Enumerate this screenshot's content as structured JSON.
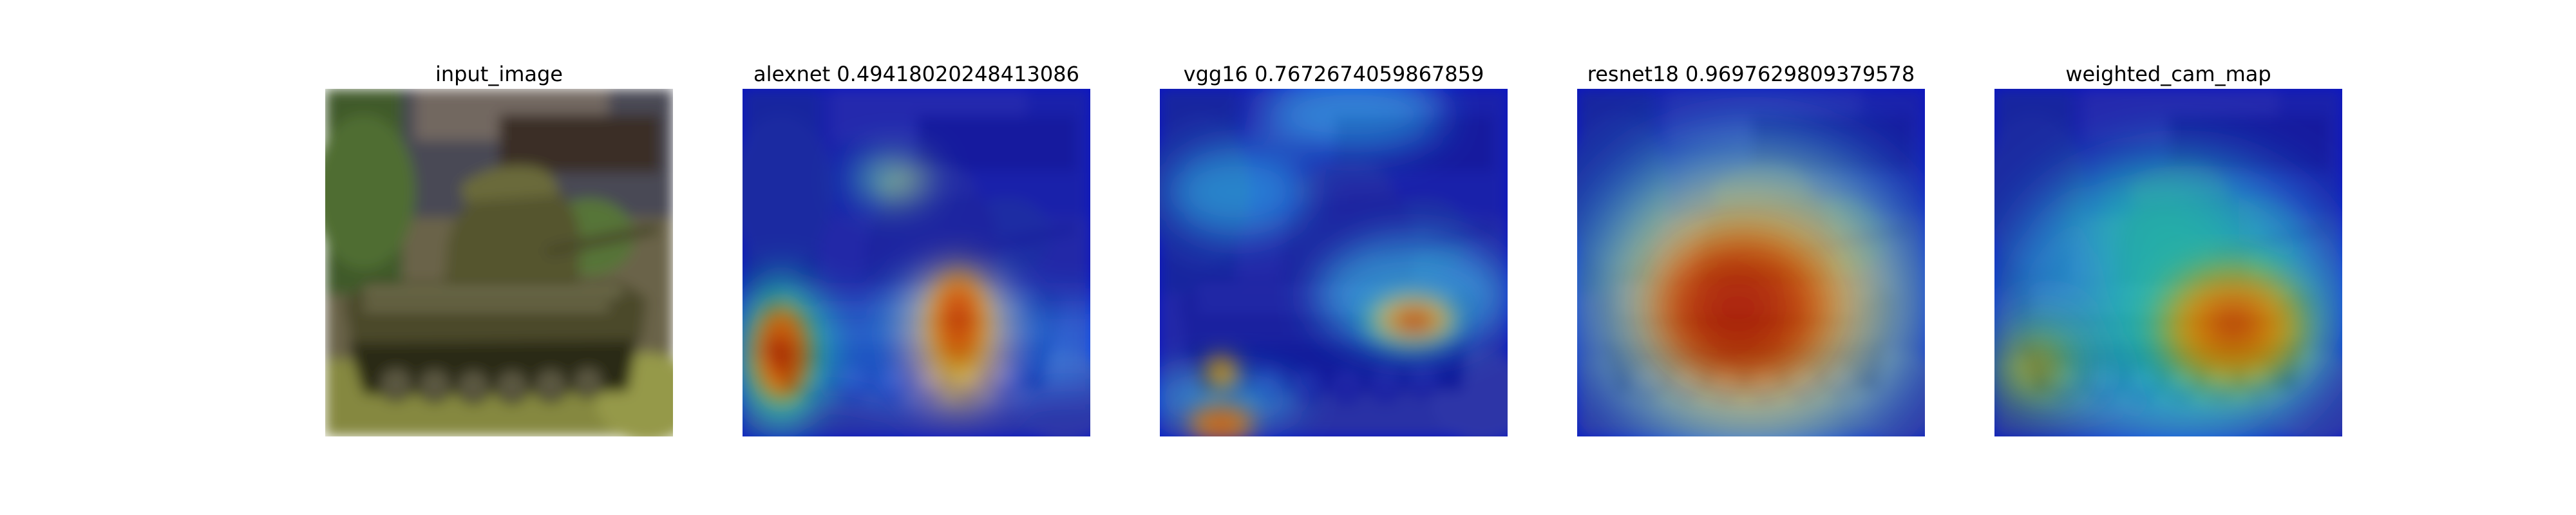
{
  "figure": {
    "panels": [
      {
        "title": "input_image"
      },
      {
        "title": "alexnet 0.49418020248413086"
      },
      {
        "title": "vgg16 0.7672674059867859"
      },
      {
        "title": "resnet18 0.9697629809379578"
      },
      {
        "title": "weighted_cam_map"
      }
    ]
  },
  "colors": {
    "background": "#ffffff",
    "jet_low": "#0a14c8",
    "jet_high": "#b40000"
  }
}
